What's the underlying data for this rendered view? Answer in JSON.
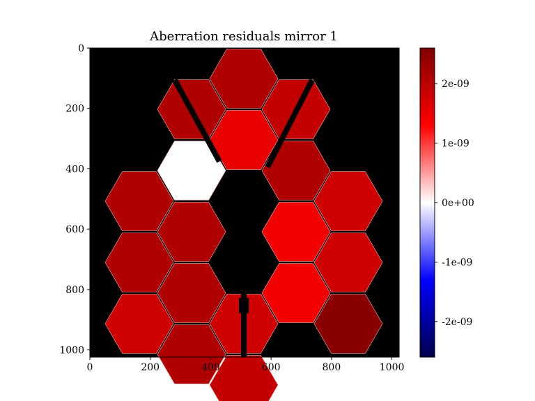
{
  "chart_data": {
    "type": "heatmap",
    "title": "Aberration residuals mirror 1",
    "xlabel": "",
    "ylabel": "",
    "xlim": [
      0,
      1024
    ],
    "ylim": [
      1024,
      0
    ],
    "x_ticks": [
      0,
      200,
      400,
      600,
      800,
      1000
    ],
    "y_ticks": [
      0,
      200,
      400,
      600,
      800,
      1000
    ],
    "background_color": "#000000",
    "colormap": "seismic",
    "colorbar": {
      "vmin": -2.6e-09,
      "vmax": 2.6e-09,
      "ticks": [
        2e-09,
        1e-09,
        0,
        -1e-09,
        -2e-09
      ],
      "tick_labels": [
        "2e-09",
        "1e-09",
        "0e+00",
        "-1e-09",
        "-2e-09"
      ]
    },
    "segments": [
      {
        "row": 0,
        "col": 0,
        "value": 2.1e-09
      },
      {
        "row": 1,
        "col": 0,
        "value": 1.5e-09
      },
      {
        "row": 1,
        "col": -1,
        "value": 2.1e-09
      },
      {
        "row": 1,
        "col": 1,
        "value": 1.9e-09
      },
      {
        "row": 2,
        "col": -1,
        "value": 0.0
      },
      {
        "row": 2,
        "col": -2,
        "value": 2.1e-09
      },
      {
        "row": 2,
        "col": 1,
        "value": 2.1e-09
      },
      {
        "row": 2,
        "col": 2,
        "value": 1.8e-09
      },
      {
        "row": 3,
        "col": -2,
        "value": 2.1e-09
      },
      {
        "row": 3,
        "col": -1,
        "value": 2.1e-09
      },
      {
        "row": 3,
        "col": 1,
        "value": 1.4e-09
      },
      {
        "row": 3,
        "col": 2,
        "value": 1.8e-09
      },
      {
        "row": 4,
        "col": -2,
        "value": 1.8e-09
      },
      {
        "row": 4,
        "col": -1,
        "value": 2.1e-09
      },
      {
        "row": 4,
        "col": 0,
        "value": 1.8e-09
      },
      {
        "row": 4,
        "col": 1,
        "value": 1.4e-09
      },
      {
        "row": 4,
        "col": 2,
        "value": 2.5e-09
      },
      {
        "row": 5,
        "col": -1,
        "value": 2.1e-09
      },
      {
        "row": 5,
        "col": 0,
        "value": 1.9e-09
      }
    ]
  }
}
